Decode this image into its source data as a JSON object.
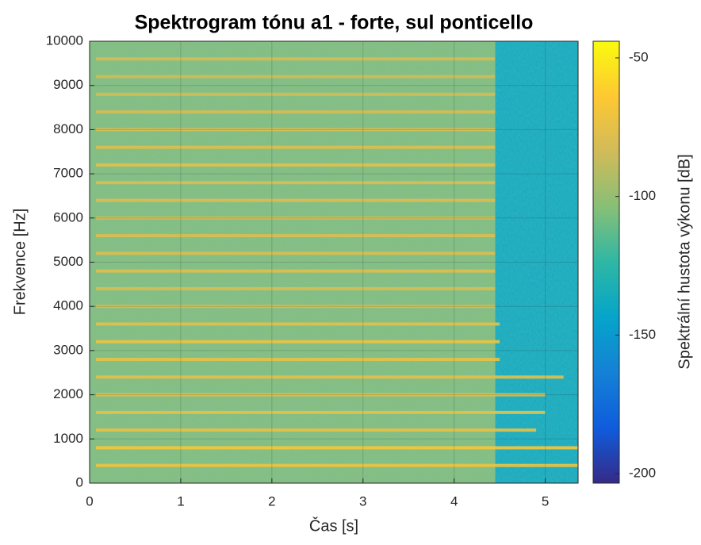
{
  "chart_data": {
    "type": "spectrogram",
    "title": "Spektrogram tónu a1 - forte, sul ponticello",
    "xlabel": "Čas [s]",
    "ylabel": "Frekvence [Hz]",
    "xlim": [
      0,
      5.36
    ],
    "ylim": [
      0,
      10000
    ],
    "xticks": [
      0,
      1,
      2,
      3,
      4,
      5
    ],
    "yticks": [
      0,
      1000,
      2000,
      3000,
      4000,
      5000,
      6000,
      7000,
      8000,
      9000,
      10000
    ],
    "grid": true,
    "colormap": [
      "#352a87",
      "#0f5cdd",
      "#1481d6",
      "#06a4ca",
      "#2eb7a4",
      "#87bf77",
      "#d1bb59",
      "#fec832",
      "#f9fb0e"
    ],
    "colorbar": {
      "label": "Spektrální hustota výkonu [dB]",
      "clim": [
        -203.4,
        -44
      ],
      "ticks": [
        -50,
        -100,
        -150,
        -200
      ]
    },
    "regions": [
      {
        "t": [
          0,
          4.45
        ],
        "level": -104
      },
      {
        "t": [
          4.45,
          5.36
        ],
        "level": -135
      }
    ],
    "harmonics": [
      {
        "freq": 400,
        "end": 5.36,
        "level": -72
      },
      {
        "freq": 800,
        "end": 5.36,
        "level": -66
      },
      {
        "freq": 1200,
        "end": 4.9,
        "level": -74
      },
      {
        "freq": 1600,
        "end": 5.0,
        "level": -74
      },
      {
        "freq": 2000,
        "end": 5.0,
        "level": -76
      },
      {
        "freq": 2400,
        "end": 5.2,
        "level": -76
      },
      {
        "freq": 2800,
        "end": 4.5,
        "level": -74
      },
      {
        "freq": 3200,
        "end": 4.5,
        "level": -72
      },
      {
        "freq": 3600,
        "end": 4.5,
        "level": -76
      },
      {
        "freq": 4000,
        "end": 4.45,
        "level": -80
      },
      {
        "freq": 4400,
        "end": 4.45,
        "level": -80
      },
      {
        "freq": 4800,
        "end": 4.45,
        "level": -78
      },
      {
        "freq": 5200,
        "end": 4.45,
        "level": -80
      },
      {
        "freq": 5600,
        "end": 4.45,
        "level": -80
      },
      {
        "freq": 6000,
        "end": 4.45,
        "level": -82
      },
      {
        "freq": 6400,
        "end": 4.45,
        "level": -80
      },
      {
        "freq": 6800,
        "end": 4.45,
        "level": -80
      },
      {
        "freq": 7200,
        "end": 4.45,
        "level": -76
      },
      {
        "freq": 7600,
        "end": 4.45,
        "level": -78
      },
      {
        "freq": 8000,
        "end": 4.45,
        "level": -80
      },
      {
        "freq": 8400,
        "end": 4.45,
        "level": -82
      },
      {
        "freq": 8800,
        "end": 4.45,
        "level": -82
      },
      {
        "freq": 9200,
        "end": 4.45,
        "level": -84
      },
      {
        "freq": 9600,
        "end": 4.45,
        "level": -82
      }
    ]
  }
}
